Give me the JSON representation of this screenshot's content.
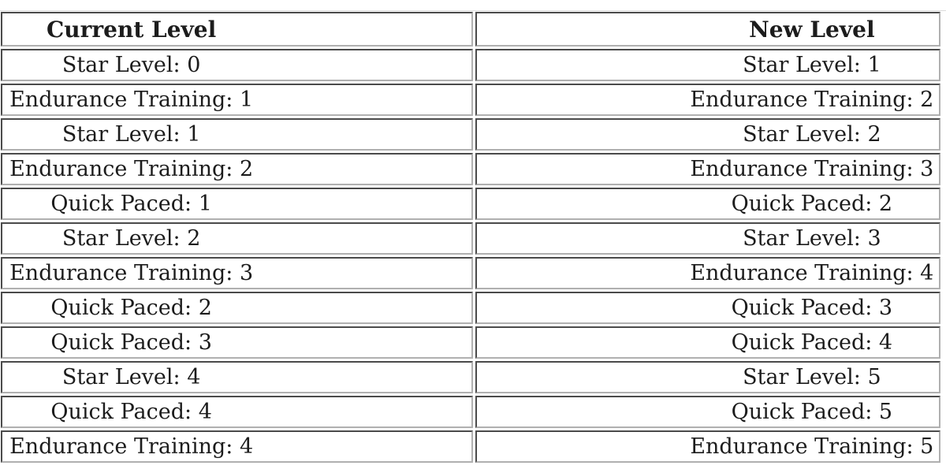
{
  "table": {
    "headers": [
      "Current Level",
      "New Level"
    ],
    "rows": [
      {
        "current": "Star Level: 0",
        "new": "Star Level: 1"
      },
      {
        "current": "Endurance Training: 1",
        "new": "Endurance Training: 2"
      },
      {
        "current": "Star Level: 1",
        "new": "Star Level: 2"
      },
      {
        "current": "Endurance Training: 2",
        "new": "Endurance Training: 3"
      },
      {
        "current": "Quick Paced: 1",
        "new": "Quick Paced: 2"
      },
      {
        "current": "Star Level: 2",
        "new": "Star Level: 3"
      },
      {
        "current": "Endurance Training: 3",
        "new": "Endurance Training: 4"
      },
      {
        "current": "Quick Paced: 2",
        "new": "Quick Paced: 3"
      },
      {
        "current": "Quick Paced: 3",
        "new": "Quick Paced: 4"
      },
      {
        "current": "Star Level: 4",
        "new": "Star Level: 5"
      },
      {
        "current": "Quick Paced: 4",
        "new": "Quick Paced: 5"
      },
      {
        "current": "Endurance Training: 4",
        "new": "Endurance Training: 5"
      }
    ],
    "colors": {
      "text": "#1c1c1c",
      "border_dark": "#4a4a4a",
      "border_light": "#b0b0b0",
      "background": "#ffffff",
      "page_top_line": "#dcdcdc"
    }
  }
}
